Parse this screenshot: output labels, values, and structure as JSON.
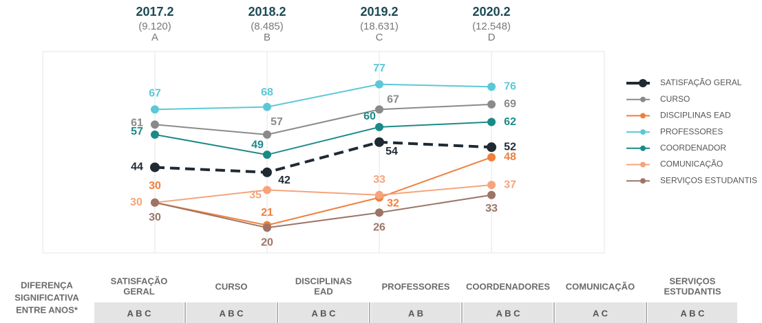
{
  "chart_data": {
    "type": "line",
    "categories": [
      "2017.2",
      "2018.2",
      "2019.2",
      "2020.2"
    ],
    "counts": [
      "(9.120)",
      "(8.485)",
      "(18.631)",
      "(12.548)"
    ],
    "letters": [
      "A",
      "B",
      "C",
      "D"
    ],
    "ylim": [
      10,
      90
    ],
    "series": [
      {
        "name": "SATISFAÇÃO GERAL",
        "color": "#1f2a33",
        "dashed": true,
        "values": [
          44,
          42,
          54,
          52
        ]
      },
      {
        "name": "CURSO",
        "color": "#8a8a8a",
        "values": [
          61,
          57,
          67,
          69
        ]
      },
      {
        "name": "DISCIPLINAS EAD",
        "color": "#f07f3c",
        "values": [
          30,
          21,
          32,
          48
        ]
      },
      {
        "name": "PROFESSORES",
        "color": "#5cc8d7",
        "values": [
          67,
          68,
          77,
          76
        ]
      },
      {
        "name": "COORDENADOR",
        "color": "#1a8a87",
        "values": [
          57,
          49,
          60,
          62
        ]
      },
      {
        "name": "COMUNICAÇÃO",
        "color": "#f5a47c",
        "values": [
          30,
          35,
          33,
          37
        ]
      },
      {
        "name": "SERVIÇOS ESTUDANTIS",
        "color": "#9c7566",
        "values": [
          30,
          20,
          26,
          33
        ]
      }
    ]
  },
  "table": {
    "row_label": [
      "DIFERENÇA",
      "SIGNIFICATIVA",
      "ENTRE ANOS*"
    ],
    "columns": [
      [
        "SATISFAÇÃO",
        "GERAL"
      ],
      [
        "CURSO"
      ],
      [
        "DISCIPLINAS",
        "EAD"
      ],
      [
        "PROFESSORES"
      ],
      [
        "COORDENADORES"
      ],
      [
        "COMUNICAÇÃO"
      ],
      [
        "SERVIÇOS",
        "ESTUDANTIS"
      ]
    ],
    "values": [
      "A B C",
      "A B C",
      "A B C",
      "A B",
      "A B C",
      "A C",
      "A B C"
    ]
  }
}
